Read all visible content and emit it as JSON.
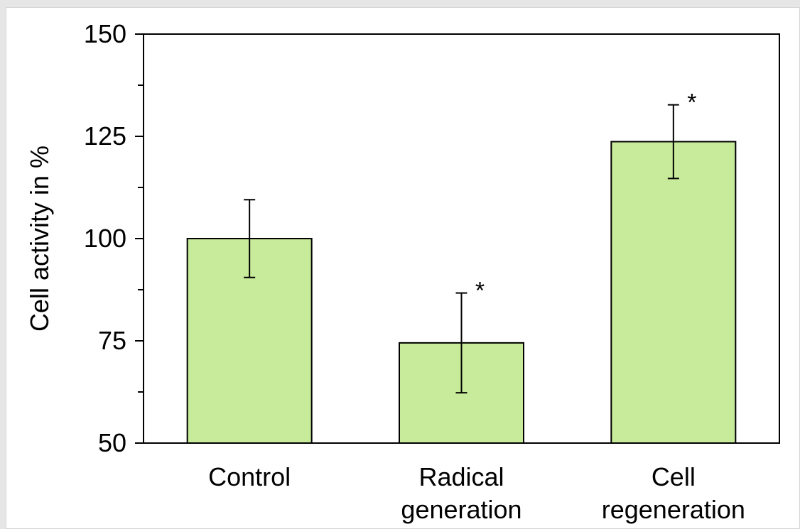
{
  "chart_data": {
    "type": "bar",
    "title": "",
    "xlabel": "",
    "ylabel": "Cell activity in %",
    "ylim": [
      50,
      150
    ],
    "yticks": [
      50,
      75,
      100,
      125,
      150
    ],
    "grid": false,
    "categories": [
      [
        "Control"
      ],
      [
        "Radical",
        "generation"
      ],
      [
        "Cell",
        "regeneration"
      ]
    ],
    "values": [
      100,
      74.5,
      123.7
    ],
    "error": [
      9.5,
      12.2,
      9.0
    ],
    "annotations": [
      "",
      "*",
      "*"
    ],
    "bar_color": "#c8eb9b",
    "edge_color": "#000000"
  }
}
